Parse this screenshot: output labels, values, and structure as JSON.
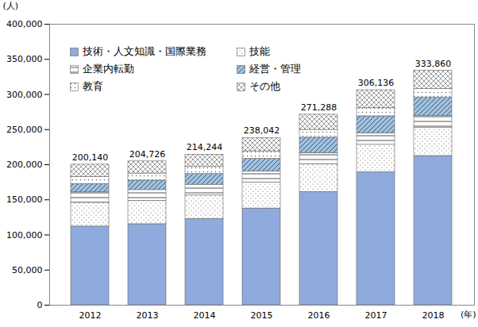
{
  "chart_data": {
    "type": "bar",
    "stacked": true,
    "categories": [
      "2012",
      "2013",
      "2014",
      "2015",
      "2016",
      "2017",
      "2018"
    ],
    "series": [
      {
        "name": "技術・人文知識・国際業務",
        "color": "#8faadc",
        "values": [
          111994,
          115357,
          122794,
          137706,
          161124,
          189273,
          212403
        ]
      },
      {
        "name": "技能",
        "color": "#ffffff",
        "values": [
          33863,
          33425,
          33374,
          37202,
          39756,
          39177,
          39915
        ]
      },
      {
        "name": "企業内転勤",
        "color": "#ffffff",
        "values": [
          14867,
          15218,
          15378,
          15465,
          15772,
          16486,
          17328
        ]
      },
      {
        "name": "経営・管理",
        "color": "#9dc3e6",
        "values": [
          11778,
          13439,
          15184,
          18109,
          21877,
          24033,
          25670
        ]
      },
      {
        "name": "教育",
        "color": "#ffffff",
        "values": [
          10121,
          10076,
          10141,
          10670,
          11159,
          11523,
          12462
        ]
      },
      {
        "name": "その他",
        "color": "#ffffff",
        "values": [
          17517,
          17211,
          17373,
          18890,
          21600,
          25644,
          26082
        ]
      }
    ],
    "totals": [
      200140,
      204726,
      214244,
      238042,
      271288,
      306136,
      333860
    ],
    "total_labels": [
      "200,140",
      "204,726",
      "214,244",
      "238,042",
      "271,288",
      "306,136",
      "333,860"
    ],
    "y_label": "(人)",
    "x_label": "(年)",
    "ylim": [
      0,
      400000
    ],
    "yticks": [
      0,
      {
        "value": 50000,
        "label": "50,000"
      },
      {
        "value": 100000,
        "label": "100,000"
      },
      {
        "value": 150000,
        "label": "150,000"
      },
      {
        "value": 200000,
        "label": "200,000"
      },
      {
        "value": 250000,
        "label": "250,000"
      },
      {
        "value": 300000,
        "label": "300,000"
      },
      {
        "value": 350000,
        "label": "350,000"
      },
      {
        "value": 400000,
        "label": "400,000"
      }
    ],
    "grid": false,
    "legend": "top-left"
  }
}
